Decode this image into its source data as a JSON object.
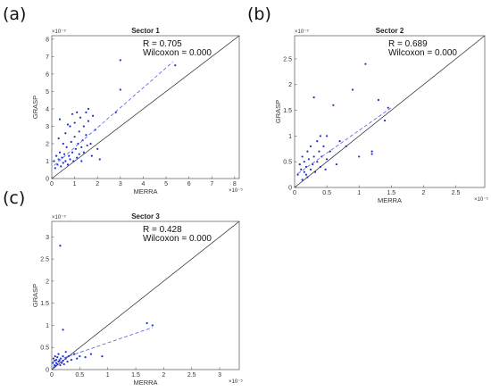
{
  "chart_data": [
    {
      "panel_label": "(a)",
      "type": "scatter",
      "title": "Sector 1",
      "xlabel": "MERRA",
      "ylabel": "GRASP",
      "multiplier": "×10⁻⁵",
      "xlim": [
        0,
        8.2
      ],
      "ylim": [
        0,
        8.2
      ],
      "xticks": [
        "0",
        "1",
        "2",
        "3",
        "4",
        "5",
        "6",
        "7",
        "8"
      ],
      "yticks": [
        "0",
        "1",
        "2",
        "3",
        "4",
        "5",
        "6",
        "7",
        "8"
      ],
      "stats": [
        "R = 0.705",
        "Wilcoxon = 0.000"
      ],
      "identity_line": true,
      "fit_line": {
        "x": [
          0.1,
          5.3
        ],
        "y": [
          0.75,
          6.7
        ]
      },
      "series": [
        {
          "points": [
            [
              0.1,
              1.0
            ],
            [
              0.15,
              0.6
            ],
            [
              0.2,
              1.3
            ],
            [
              0.25,
              0.8
            ],
            [
              0.3,
              1.1
            ],
            [
              0.3,
              2.3
            ],
            [
              0.35,
              1.5
            ],
            [
              0.4,
              0.7
            ],
            [
              0.45,
              1.2
            ],
            [
              0.5,
              0.9
            ],
            [
              0.5,
              2.0
            ],
            [
              0.55,
              1.4
            ],
            [
              0.6,
              1.0
            ],
            [
              0.6,
              2.6
            ],
            [
              0.65,
              1.8
            ],
            [
              0.7,
              0.8
            ],
            [
              0.75,
              1.3
            ],
            [
              0.8,
              3.0
            ],
            [
              0.8,
              1.1
            ],
            [
              0.85,
              2.1
            ],
            [
              0.9,
              1.5
            ],
            [
              0.9,
              3.7
            ],
            [
              0.95,
              1.0
            ],
            [
              1.0,
              2.4
            ],
            [
              1.0,
              3.2
            ],
            [
              1.05,
              1.7
            ],
            [
              1.1,
              1.2
            ],
            [
              1.1,
              3.8
            ],
            [
              1.15,
              2.0
            ],
            [
              1.2,
              1.4
            ],
            [
              1.2,
              2.7
            ],
            [
              1.25,
              3.5
            ],
            [
              1.3,
              1.8
            ],
            [
              1.3,
              1.0
            ],
            [
              1.35,
              2.2
            ],
            [
              1.4,
              3.0
            ],
            [
              1.4,
              1.5
            ],
            [
              1.5,
              3.8
            ],
            [
              1.5,
              2.5
            ],
            [
              1.55,
              1.9
            ],
            [
              1.6,
              3.3
            ],
            [
              1.7,
              2.0
            ],
            [
              1.75,
              1.3
            ],
            [
              1.8,
              3.6
            ],
            [
              1.9,
              2.8
            ],
            [
              2.0,
              1.7
            ],
            [
              2.1,
              1.1
            ],
            [
              2.8,
              3.8
            ],
            [
              3.0,
              6.8
            ],
            [
              3.0,
              5.1
            ],
            [
              5.4,
              6.5
            ],
            [
              0.35,
              3.4
            ],
            [
              0.7,
              3.1
            ],
            [
              1.6,
              4.0
            ]
          ]
        }
      ]
    },
    {
      "panel_label": "(b)",
      "type": "scatter",
      "title": "Sector 2",
      "xlabel": "MERRA",
      "ylabel": "GRASP",
      "multiplier": "×10⁻⁵",
      "xlim": [
        0,
        2.95
      ],
      "ylim": [
        0,
        2.95
      ],
      "xticks": [
        "0",
        "0.5",
        "1",
        "1.5",
        "2",
        "2.5"
      ],
      "yticks": [
        "0",
        "0.5",
        "1",
        "1.5",
        "2",
        "2.5"
      ],
      "stats": [
        "R = 0.689",
        "Wilcoxon = 0.000"
      ],
      "identity_line": true,
      "fit_line": {
        "x": [
          0.05,
          1.5
        ],
        "y": [
          0.27,
          1.55
        ]
      },
      "series": [
        {
          "points": [
            [
              0.05,
              0.25
            ],
            [
              0.08,
              0.45
            ],
            [
              0.1,
              0.35
            ],
            [
              0.12,
              0.6
            ],
            [
              0.15,
              0.3
            ],
            [
              0.15,
              0.5
            ],
            [
              0.18,
              0.4
            ],
            [
              0.2,
              0.7
            ],
            [
              0.2,
              0.2
            ],
            [
              0.22,
              0.55
            ],
            [
              0.25,
              0.35
            ],
            [
              0.25,
              0.8
            ],
            [
              0.28,
              0.45
            ],
            [
              0.3,
              0.6
            ],
            [
              0.3,
              1.75
            ],
            [
              0.32,
              0.3
            ],
            [
              0.35,
              0.9
            ],
            [
              0.35,
              0.5
            ],
            [
              0.38,
              0.7
            ],
            [
              0.4,
              0.4
            ],
            [
              0.4,
              1.0
            ],
            [
              0.42,
              0.6
            ],
            [
              0.45,
              0.8
            ],
            [
              0.48,
              0.35
            ],
            [
              0.5,
              0.55
            ],
            [
              0.5,
              1.0
            ],
            [
              0.55,
              0.7
            ],
            [
              0.6,
              1.6
            ],
            [
              0.65,
              0.45
            ],
            [
              0.7,
              0.9
            ],
            [
              0.8,
              0.8
            ],
            [
              0.9,
              1.9
            ],
            [
              1.0,
              0.6
            ],
            [
              1.1,
              2.4
            ],
            [
              1.2,
              0.7
            ],
            [
              1.2,
              0.65
            ],
            [
              1.3,
              1.7
            ],
            [
              1.4,
              1.3
            ],
            [
              1.45,
              1.55
            ],
            [
              0.12,
              0.15
            ],
            [
              0.18,
              0.25
            ]
          ]
        }
      ]
    },
    {
      "panel_label": "(c)",
      "type": "scatter",
      "title": "Sector 3",
      "xlabel": "MERRA",
      "ylabel": "GRASP",
      "multiplier": "×10⁻⁵",
      "xlim": [
        0,
        3.35
      ],
      "ylim": [
        0,
        3.35
      ],
      "xticks": [
        "0",
        "0.5",
        "1",
        "1.5",
        "2",
        "2.5",
        "3"
      ],
      "yticks": [
        "0",
        "0.5",
        "1",
        "1.5",
        "2",
        "2.5",
        "3"
      ],
      "stats": [
        "R = 0.428",
        "Wilcoxon = 0.000"
      ],
      "identity_line": true,
      "fit_line": {
        "x": [
          0.02,
          1.8
        ],
        "y": [
          0.18,
          0.95
        ]
      },
      "series": [
        {
          "points": [
            [
              0.02,
              0.15
            ],
            [
              0.03,
              0.25
            ],
            [
              0.05,
              0.1
            ],
            [
              0.05,
              0.2
            ],
            [
              0.06,
              0.3
            ],
            [
              0.08,
              0.15
            ],
            [
              0.08,
              0.22
            ],
            [
              0.1,
              0.12
            ],
            [
              0.1,
              0.28
            ],
            [
              0.12,
              0.18
            ],
            [
              0.12,
              0.35
            ],
            [
              0.14,
              0.2
            ],
            [
              0.15,
              0.1
            ],
            [
              0.16,
              0.25
            ],
            [
              0.18,
              0.15
            ],
            [
              0.2,
              0.3
            ],
            [
              0.2,
              0.2
            ],
            [
              0.22,
              0.12
            ],
            [
              0.25,
              0.25
            ],
            [
              0.25,
              0.4
            ],
            [
              0.28,
              0.18
            ],
            [
              0.3,
              0.3
            ],
            [
              0.35,
              0.22
            ],
            [
              0.4,
              0.35
            ],
            [
              0.45,
              0.25
            ],
            [
              0.5,
              0.3
            ],
            [
              0.6,
              0.28
            ],
            [
              0.7,
              0.35
            ],
            [
              0.9,
              0.3
            ],
            [
              0.15,
              2.8
            ],
            [
              0.2,
              0.9
            ],
            [
              1.7,
              1.05
            ],
            [
              1.8,
              1.0
            ],
            [
              0.04,
              0.05
            ],
            [
              0.07,
              0.08
            ]
          ]
        }
      ]
    }
  ]
}
